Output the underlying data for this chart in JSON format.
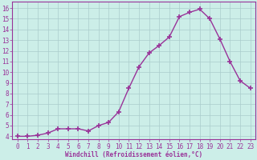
{
  "x": [
    0,
    1,
    2,
    3,
    4,
    5,
    6,
    7,
    8,
    9,
    10,
    11,
    12,
    13,
    14,
    15,
    16,
    17,
    18,
    19,
    20,
    21,
    22,
    23
  ],
  "y": [
    4.0,
    4.0,
    4.1,
    4.3,
    4.7,
    4.7,
    4.7,
    4.5,
    5.0,
    5.3,
    6.3,
    8.5,
    10.5,
    11.8,
    12.5,
    13.3,
    15.2,
    15.6,
    15.9,
    15.0,
    13.1,
    11.0,
    9.2,
    8.5
  ],
  "line_color": "#993399",
  "marker": "+",
  "marker_size": 4,
  "marker_linewidth": 1.2,
  "line_width": 1.0,
  "background_color": "#cceee8",
  "grid_color": "#aacccc",
  "xlabel": "Windchill (Refroidissement éolien,°C)",
  "xlabel_color": "#993399",
  "ytick_labels": [
    "4",
    "5",
    "6",
    "7",
    "8",
    "9",
    "10",
    "11",
    "12",
    "13",
    "14",
    "15",
    "16"
  ],
  "ytick_values": [
    4,
    5,
    6,
    7,
    8,
    9,
    10,
    11,
    12,
    13,
    14,
    15,
    16
  ],
  "ylim": [
    3.7,
    16.6
  ],
  "xlim": [
    -0.5,
    23.5
  ],
  "tick_color": "#993399",
  "spine_color": "#993399",
  "tick_fontsize": 5.5,
  "xlabel_fontsize": 5.5
}
